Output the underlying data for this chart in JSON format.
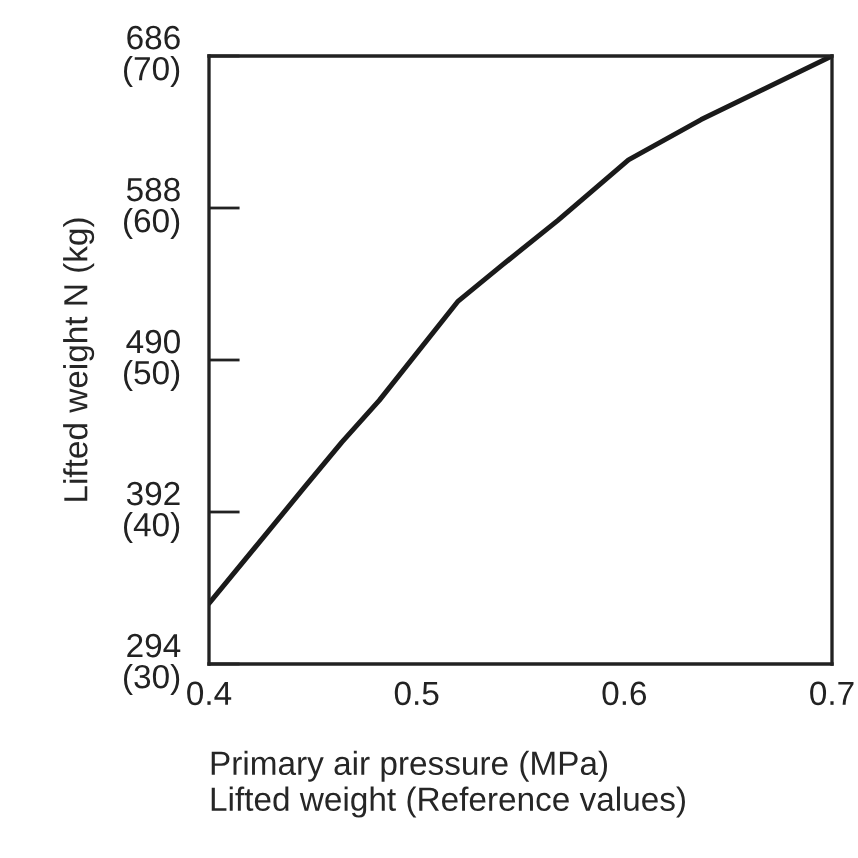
{
  "chart_data": {
    "type": "line",
    "xlabel": "Primary air pressure (MPa)\nLifted weight (Reference values)",
    "y2label": "Lifted weight N (kg)",
    "x": [
      0.4,
      0.446,
      0.464,
      0.482,
      0.52,
      0.541,
      0.568,
      0.602,
      0.637,
      0.7
    ],
    "series": [
      {
        "color": "#1a1a1a",
        "values": [
          333,
          408,
          437,
          464,
          528,
          551,
          580,
          619,
          645,
          686
        ]
      }
    ],
    "xlim": [
      0.4,
      0.7
    ],
    "xticks": [
      0.4,
      0.5,
      0.6,
      0.7
    ],
    "ylim": [
      294,
      686
    ],
    "yticks": [
      294,
      392,
      490,
      588,
      686
    ],
    "y2lim": [
      30,
      70
    ],
    "y2ticks": [
      {
        "value": 30,
        "label": "(30)"
      },
      {
        "value": 40,
        "label": "(40)"
      },
      {
        "value": 50,
        "label": "(50)"
      },
      {
        "value": 60,
        "label": "(60)"
      },
      {
        "value": 70,
        "label": "(70)"
      }
    ],
    "grid": false,
    "legend": false,
    "marker": "none",
    "line_style": "solid"
  }
}
